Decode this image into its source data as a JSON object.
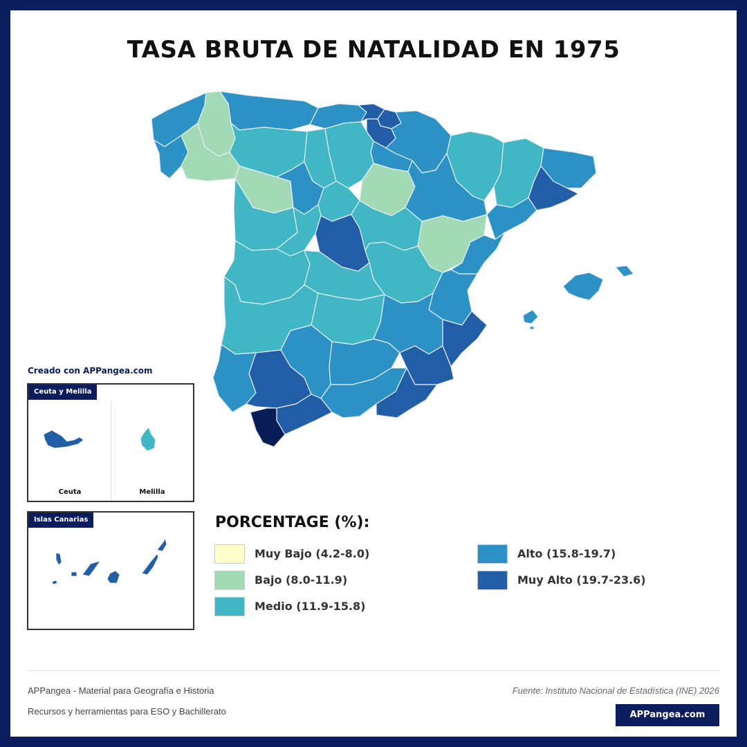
{
  "title": "TASA BRUTA DE NATALIDAD EN 1975",
  "created_with": "Creado con APPangea.com",
  "colors": {
    "frame": "#0b1d5c",
    "muy_bajo": "#ffffcc",
    "bajo": "#a1dab4",
    "medio": "#41b6c4",
    "alto": "#2c92c5",
    "muy_alto": "#225ea8",
    "highest": "#081d58"
  },
  "insets": {
    "ceuta_melilla": {
      "tag": "Ceuta y Melilla",
      "ceuta_label": "Ceuta",
      "melilla_label": "Melilla"
    },
    "canarias": {
      "tag": "Islas Canarias"
    }
  },
  "legend": {
    "title": "PORCENTAGE (%):",
    "items": [
      {
        "label": "Muy Bajo (4.2-8.0)",
        "color": "#ffffcc"
      },
      {
        "label": "Bajo (8.0-11.9)",
        "color": "#a1dab4"
      },
      {
        "label": "Medio (11.9-15.8)",
        "color": "#41b6c4"
      },
      {
        "label": "Alto (15.8-19.7)",
        "color": "#2c92c5"
      },
      {
        "label": "Muy Alto (19.7-23.6)",
        "color": "#225ea8"
      }
    ]
  },
  "footer": {
    "line1": "APPangea - Material para Geografía e Historia",
    "line2": "Recursos y herramientas para ESO y Bachillerato",
    "source": "Fuente: Instituto Nacional de Estadística (INE) 2026",
    "brand_button": "APPangea.com"
  }
}
